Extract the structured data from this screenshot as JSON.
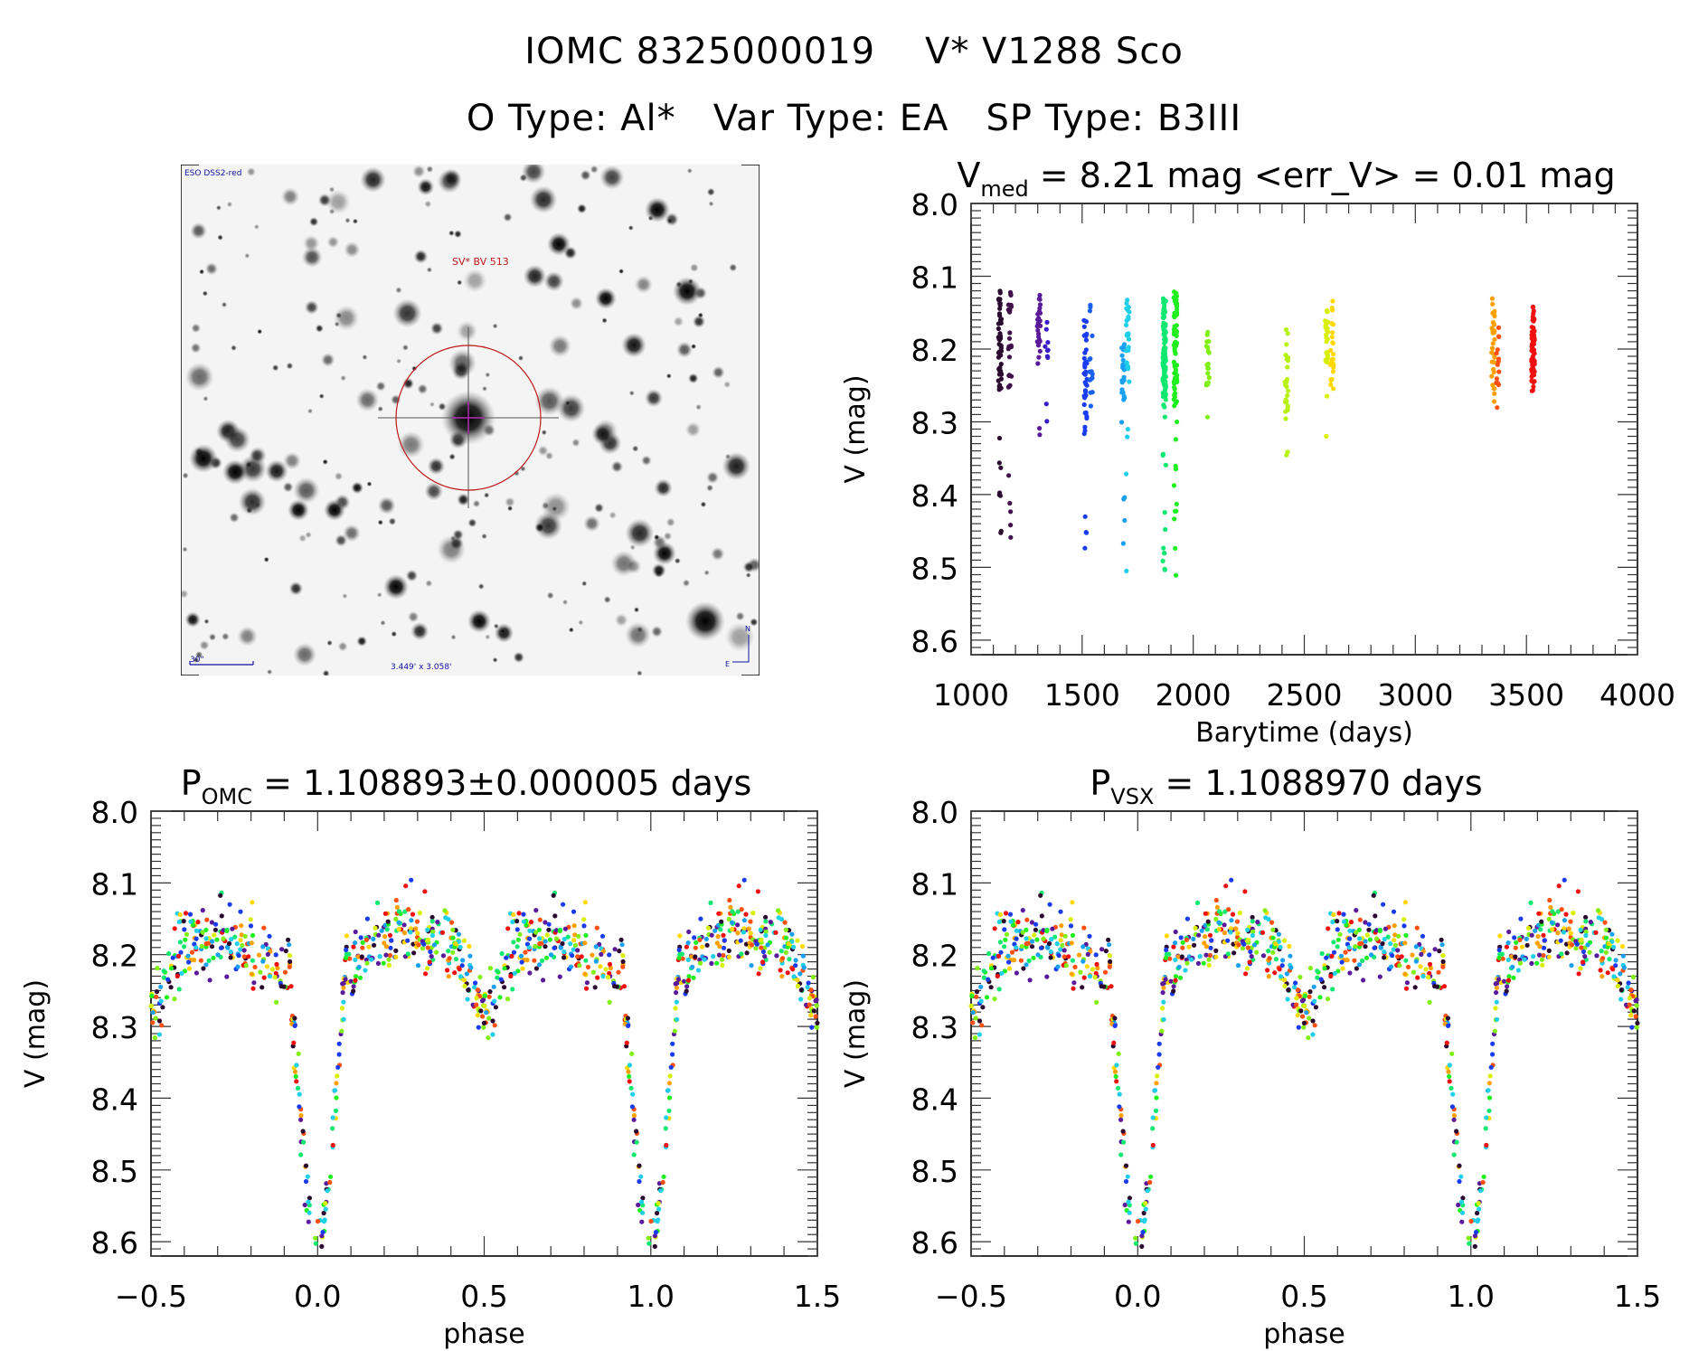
{
  "header": {
    "line1": "IOMC 8325000019    V* V1288 Sco",
    "line2": "O Type: Al*   Var Type: EA   SP Type: B3III"
  },
  "finder_chart": {
    "survey_label": "ESO DSS2-red",
    "target_label": "SV* BV 513",
    "scale_label": "30\"",
    "fov_label": "3.449' x 3.058'",
    "north_label": "N",
    "east_label": "E",
    "circle_color": "#c01818",
    "crosshair_color": "#c020c0",
    "annotation_color": "#1010a0"
  },
  "chart_data": [
    {
      "id": "lightcurve",
      "type": "scatter",
      "title_main": "V",
      "title_sub": "med",
      "title_rest": " = 8.21 mag <err_V> = 0.01 mag",
      "xlabel": "Barytime (days)",
      "ylabel": "V (mag)",
      "xlim": [
        1000,
        4000
      ],
      "ylim": [
        8.0,
        8.62
      ],
      "y_inverted": true,
      "xticks": [
        1000,
        1500,
        2000,
        2500,
        3000,
        3500,
        4000
      ],
      "yticks": [
        8.0,
        8.1,
        8.2,
        8.3,
        8.4,
        8.5,
        8.6
      ],
      "ytick_labels": [
        "8.0",
        "8.1",
        "8.2",
        "8.3",
        "8.4",
        "8.5",
        "8.6"
      ],
      "grid": false,
      "color_scale": "rainbow by time",
      "segments": [
        {
          "t": 1130,
          "vmin": 8.12,
          "vmax": 8.47,
          "core": [
            8.12,
            8.26
          ],
          "n": 60,
          "color": "#2a0a2e"
        },
        {
          "t": 1175,
          "vmin": 8.12,
          "vmax": 8.47,
          "core": [
            8.12,
            8.26
          ],
          "n": 30,
          "color": "#40104a"
        },
        {
          "t": 1305,
          "vmin": 8.1,
          "vmax": 8.38,
          "core": [
            8.12,
            8.22
          ],
          "n": 30,
          "color": "#5a1a9a"
        },
        {
          "t": 1340,
          "vmin": 8.16,
          "vmax": 8.3,
          "core": [
            8.16,
            8.3
          ],
          "n": 10,
          "color": "#3a1cc8"
        },
        {
          "t": 1515,
          "vmin": 8.16,
          "vmax": 8.52,
          "core": [
            8.16,
            8.32
          ],
          "n": 40,
          "color": "#1a3cf0"
        },
        {
          "t": 1540,
          "vmin": 8.12,
          "vmax": 8.28,
          "core": [
            8.12,
            8.28
          ],
          "n": 15,
          "color": "#1a60f0"
        },
        {
          "t": 1685,
          "vmin": 8.19,
          "vmax": 8.52,
          "core": [
            8.19,
            8.27
          ],
          "n": 30,
          "color": "#1aa0f0"
        },
        {
          "t": 1705,
          "vmin": 8.13,
          "vmax": 8.52,
          "core": [
            8.13,
            8.23
          ],
          "n": 30,
          "color": "#20d0e8"
        },
        {
          "t": 1870,
          "vmin": 8.13,
          "vmax": 8.55,
          "core": [
            8.13,
            8.28
          ],
          "n": 110,
          "color": "#10e870"
        },
        {
          "t": 1920,
          "vmin": 8.12,
          "vmax": 8.53,
          "core": [
            8.12,
            8.28
          ],
          "n": 80,
          "color": "#20f020"
        },
        {
          "t": 2065,
          "vmin": 8.17,
          "vmax": 8.32,
          "core": [
            8.17,
            8.25
          ],
          "n": 20,
          "color": "#80f010"
        },
        {
          "t": 2420,
          "vmin": 8.16,
          "vmax": 8.35,
          "core": [
            8.16,
            8.3
          ],
          "n": 25,
          "color": "#b8f010"
        },
        {
          "t": 2600,
          "vmin": 8.14,
          "vmax": 8.42,
          "core": [
            8.14,
            8.22
          ],
          "n": 30,
          "color": "#d8f000"
        },
        {
          "t": 2625,
          "vmin": 8.13,
          "vmax": 8.26,
          "core": [
            8.13,
            8.26
          ],
          "n": 25,
          "color": "#ffd800"
        },
        {
          "t": 3350,
          "vmin": 8.13,
          "vmax": 8.28,
          "core": [
            8.13,
            8.26
          ],
          "n": 30,
          "color": "#ffa000"
        },
        {
          "t": 3370,
          "vmin": 8.16,
          "vmax": 8.52,
          "core": [
            8.16,
            8.25
          ],
          "n": 15,
          "color": "#ff5010"
        },
        {
          "t": 3530,
          "vmin": 8.14,
          "vmax": 8.26,
          "core": [
            8.14,
            8.26
          ],
          "n": 70,
          "color": "#f01010"
        }
      ]
    },
    {
      "id": "phase_omc",
      "type": "scatter",
      "title_main": "P",
      "title_sub": "OMC",
      "title_rest": " = 1.108893±0.000005 days",
      "xlabel": "phase",
      "ylabel": "V (mag)",
      "xlim": [
        -0.5,
        1.5
      ],
      "ylim": [
        8.0,
        8.62
      ],
      "y_inverted": true,
      "xticks": [
        -0.5,
        0.0,
        0.5,
        1.0,
        1.5
      ],
      "xtick_labels": [
        "−0.5",
        "0.0",
        "0.5",
        "1.0",
        "1.5"
      ],
      "yticks": [
        8.0,
        8.1,
        8.2,
        8.3,
        8.4,
        8.5,
        8.6
      ],
      "ytick_labels": [
        "8.0",
        "8.1",
        "8.2",
        "8.3",
        "8.4",
        "8.5",
        "8.6"
      ],
      "grid": false,
      "period_days": 1.108893,
      "model": {
        "baseline": 8.2,
        "primary_min_phase": 0.0,
        "primary_depth_mag": 0.52,
        "primary_half_width": 0.09,
        "secondary_min_phase": 0.5,
        "secondary_depth_mag": 0.08,
        "scatter_mag": 0.025
      }
    },
    {
      "id": "phase_vsx",
      "type": "scatter",
      "title_main": "P",
      "title_sub": "VSX",
      "title_rest": " = 1.1088970 days",
      "xlabel": "phase",
      "ylabel": "V (mag)",
      "xlim": [
        -0.5,
        1.5
      ],
      "ylim": [
        8.0,
        8.62
      ],
      "y_inverted": true,
      "xticks": [
        -0.5,
        0.0,
        0.5,
        1.0,
        1.5
      ],
      "xtick_labels": [
        "−0.5",
        "0.0",
        "0.5",
        "1.0",
        "1.5"
      ],
      "yticks": [
        8.0,
        8.1,
        8.2,
        8.3,
        8.4,
        8.5,
        8.6
      ],
      "ytick_labels": [
        "8.0",
        "8.1",
        "8.2",
        "8.3",
        "8.4",
        "8.5",
        "8.6"
      ],
      "grid": false,
      "period_days": 1.108897,
      "model": {
        "baseline": 8.2,
        "primary_min_phase": 0.0,
        "primary_depth_mag": 0.52,
        "primary_half_width": 0.09,
        "secondary_min_phase": 0.5,
        "secondary_depth_mag": 0.08,
        "scatter_mag": 0.025
      }
    }
  ],
  "palette": [
    "#2a0a2e",
    "#5a1a9a",
    "#1a3cf0",
    "#1aa0f0",
    "#20d0e8",
    "#10e870",
    "#20f020",
    "#80f010",
    "#d8f000",
    "#ffd800",
    "#ffa000",
    "#ff5010",
    "#f01010"
  ]
}
